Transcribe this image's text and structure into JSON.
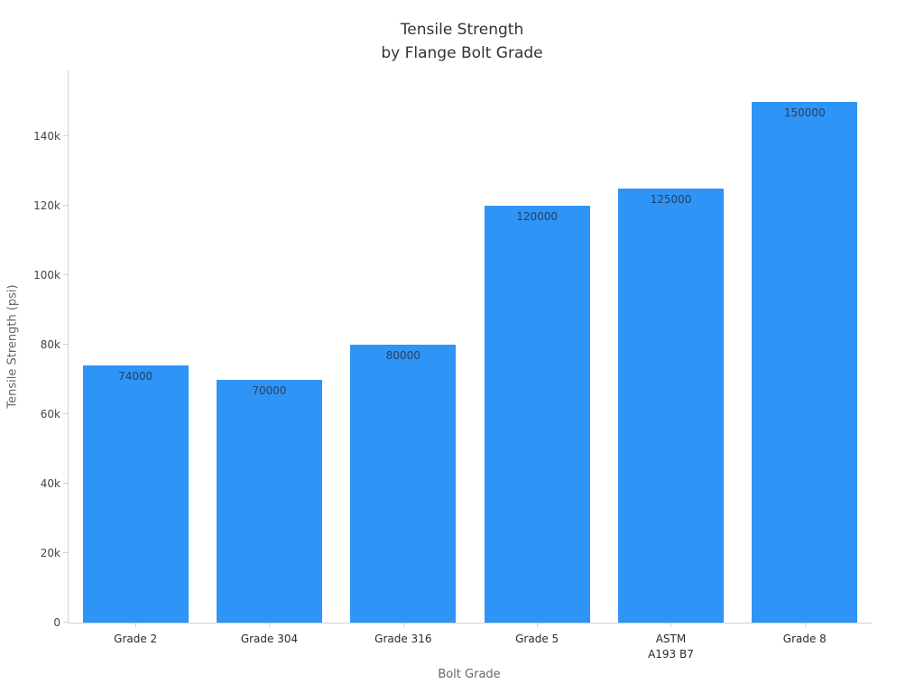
{
  "chart": {
    "title_line1": "Tensile Strength",
    "title_line2": "by Flange Bolt Grade",
    "xlabel": "Bolt Grade",
    "ylabel": "Tensile Strength (psi)"
  },
  "chart_data": {
    "type": "bar",
    "title": "Tensile Strength by Flange Bolt Grade",
    "categories": [
      "Grade 2",
      "Grade 304",
      "Grade 316",
      "Grade 5",
      "ASTM\nA193 B7",
      "Grade 8"
    ],
    "values": [
      74000,
      70000,
      80000,
      120000,
      125000,
      150000
    ],
    "bar_labels": [
      "74000",
      "70000",
      "80000",
      "120000",
      "125000",
      "150000"
    ],
    "xlabel": "Bolt Grade",
    "ylabel": "Tensile Strength (psi)",
    "ylim": [
      0,
      159000
    ],
    "yticks": [
      {
        "value": 0,
        "label": "0"
      },
      {
        "value": 20000,
        "label": "20k"
      },
      {
        "value": 40000,
        "label": "40k"
      },
      {
        "value": 60000,
        "label": "60k"
      },
      {
        "value": 80000,
        "label": "80k"
      },
      {
        "value": 100000,
        "label": "100k"
      },
      {
        "value": 120000,
        "label": "120k"
      },
      {
        "value": 140000,
        "label": "140k"
      }
    ],
    "grid": false,
    "legend": false,
    "bar_color": "#2e94f5",
    "value_label_color": "#2a3f5f",
    "axis_color": "#d0d0d0"
  }
}
